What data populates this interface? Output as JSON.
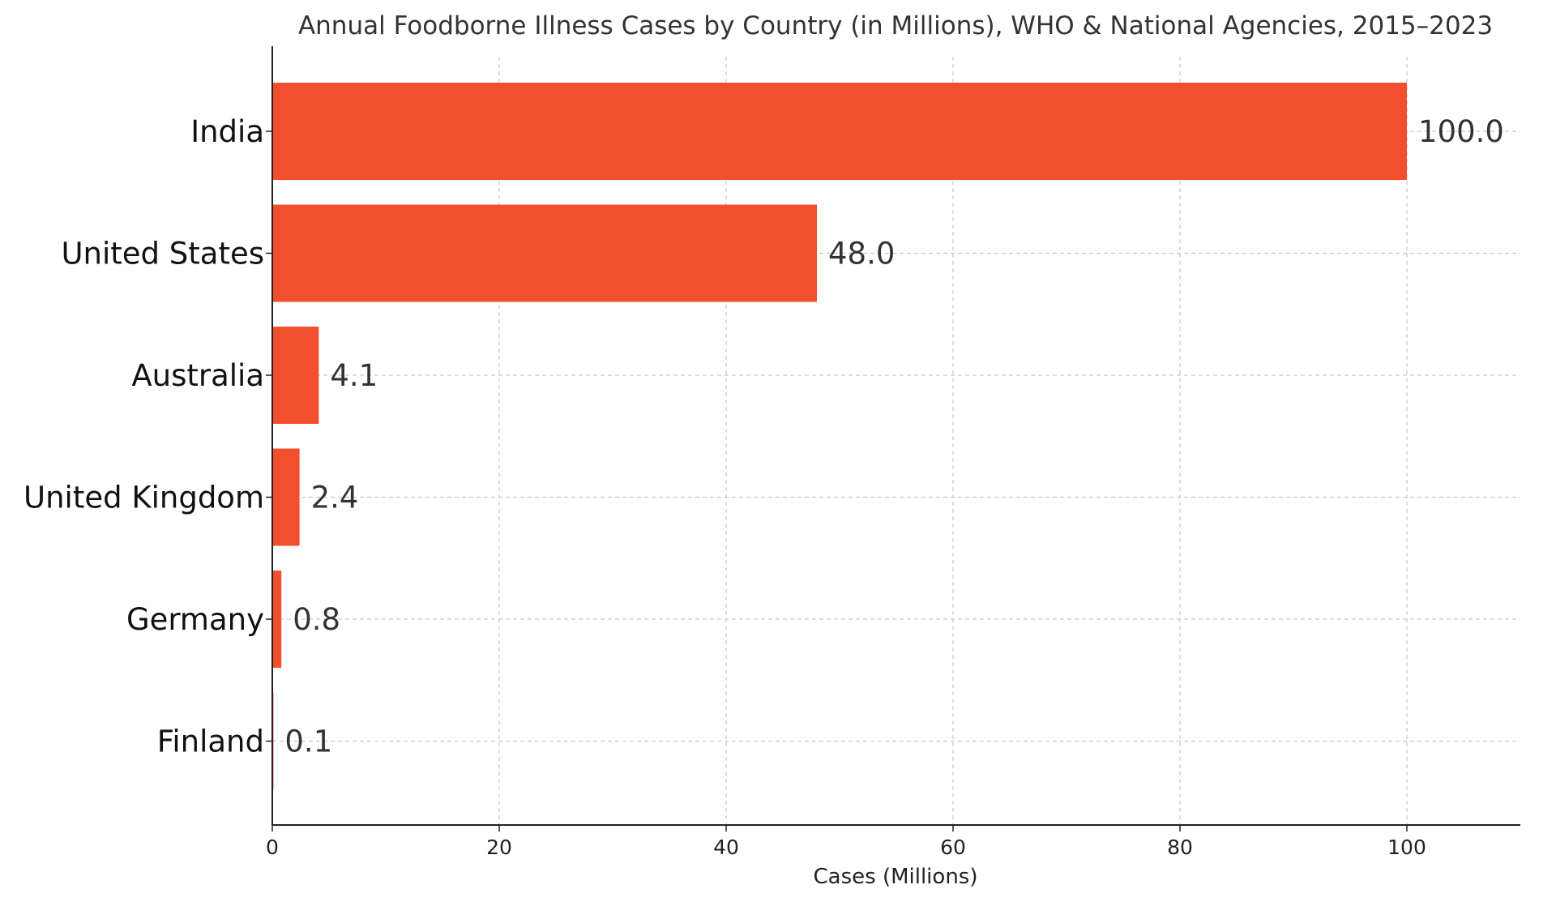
{
  "chart_data": {
    "type": "bar",
    "orientation": "horizontal",
    "title": "Annual Foodborne Illness Cases by Country (in Millions), WHO & National Agencies, 2015–2023",
    "xlabel": "Cases (Millions)",
    "ylabel": "",
    "categories": [
      "India",
      "United States",
      "Australia",
      "United Kingdom",
      "Germany",
      "Finland"
    ],
    "values": [
      100.0,
      48.0,
      4.1,
      2.4,
      0.8,
      0.1
    ],
    "value_labels": [
      "100.0",
      "48.0",
      "4.1",
      "2.4",
      "0.8",
      "0.1"
    ],
    "xlim": [
      0,
      110
    ],
    "x_ticks": [
      0,
      20,
      40,
      60,
      80,
      100
    ],
    "x_tick_labels": [
      "0",
      "20",
      "40",
      "60",
      "80",
      "100"
    ],
    "grid": true,
    "legend": "none",
    "colors": {
      "bar": "#f24f2e",
      "text": "#333333",
      "axis": "#222222",
      "grid": "#c8c8c8"
    }
  }
}
